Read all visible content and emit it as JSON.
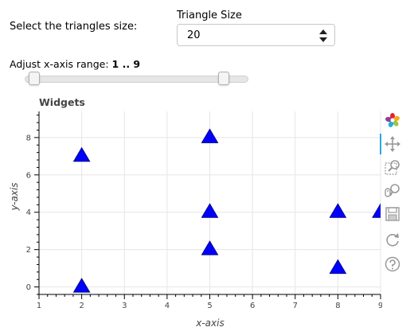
{
  "controls": {
    "select_label": "Select the triangles size:",
    "size_title": "Triangle Size",
    "size_value": "20",
    "range_label": "Adjust x-axis range:",
    "range_value": "1 .. 9",
    "range_min": 1,
    "range_max": 9
  },
  "toolbar": {
    "logo_icon": "bokeh-logo-icon",
    "pan": "pan-icon",
    "box_zoom": "box-zoom-icon",
    "wheel_zoom": "wheel-zoom-icon",
    "save": "save-icon",
    "reset": "reset-icon",
    "help": "help-icon",
    "active_color": "#26aae1"
  },
  "chart_data": {
    "type": "scatter",
    "title": "Widgets",
    "xlabel": "x-axis",
    "ylabel": "y-axis",
    "xlim": [
      1,
      9
    ],
    "ylim": [
      -0.4,
      9.4
    ],
    "x_ticks": [
      1,
      2,
      3,
      4,
      5,
      6,
      7,
      8,
      9
    ],
    "y_ticks": [
      0,
      2,
      4,
      6,
      8
    ],
    "marker": "triangle",
    "marker_color": "#0000ff",
    "grid": true,
    "points": [
      {
        "x": 2,
        "y": 0
      },
      {
        "x": 2,
        "y": 7
      },
      {
        "x": 5,
        "y": 8
      },
      {
        "x": 5,
        "y": 4
      },
      {
        "x": 5,
        "y": 2
      },
      {
        "x": 8,
        "y": 4
      },
      {
        "x": 8,
        "y": 1
      },
      {
        "x": 9,
        "y": 4
      }
    ]
  }
}
